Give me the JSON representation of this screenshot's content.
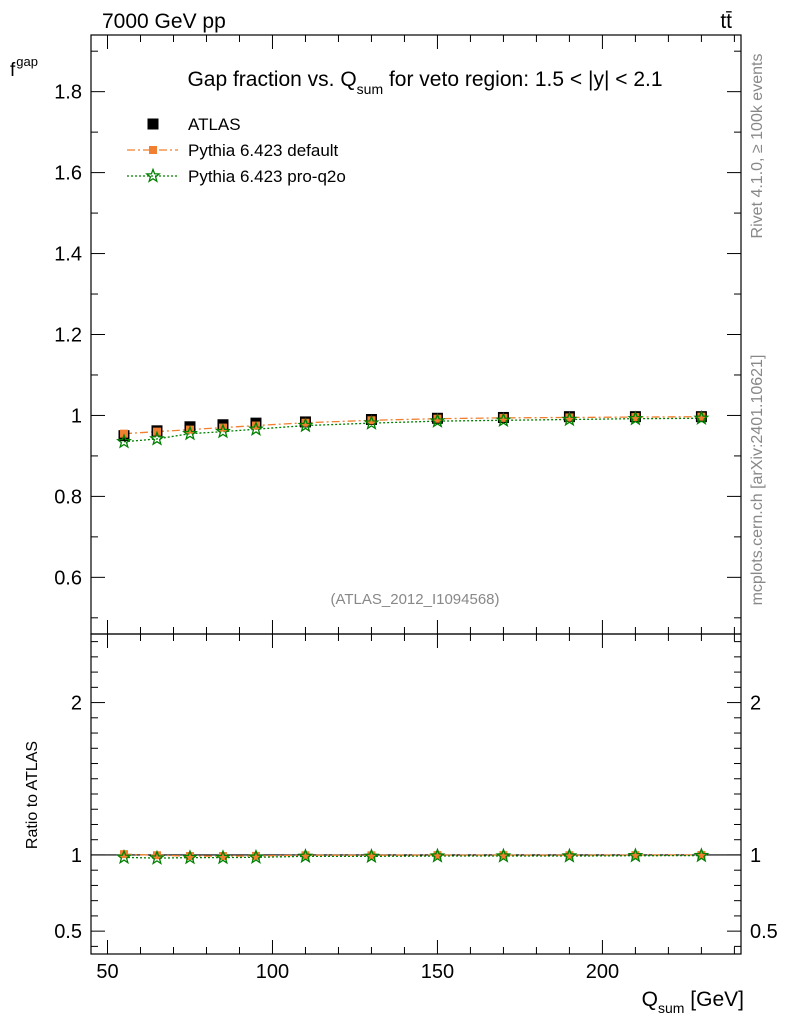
{
  "header": {
    "energy_label": "7000 GeV pp",
    "process_label": "tt̄"
  },
  "side_labels": {
    "rivet": "Rivet 4.1.0, ≥ 100k events",
    "mcplots": "mcplots.cern.ch [arXiv:2401.10621]"
  },
  "colors": {
    "atlas": "#000000",
    "default": "#f08030",
    "pro_q2o": "#008000"
  },
  "chart_data": {
    "type": "line",
    "title": {
      "prefix": "Gap fraction vs. Q",
      "subscript": "sum",
      "suffix": " for veto region: 1.5 < |y| < 2.1"
    },
    "analysis_id": "(ATLAS_2012_I1094568)",
    "xlabel": {
      "main": "Q",
      "subscript": "sum",
      "unit": " [GeV]"
    },
    "ylabel_top": {
      "main": "f",
      "subscript": "gap"
    },
    "ylabel_ratio": "Ratio to ATLAS",
    "xlim": [
      45,
      242
    ],
    "ylim_top": [
      0.46,
      1.94
    ],
    "ylim_ratio": [
      0.35,
      2.45
    ],
    "x_ticks": [
      50,
      100,
      150,
      200
    ],
    "x_tick_labels": [
      "50",
      "100",
      "150",
      "200"
    ],
    "y_ticks_top": [
      0.6,
      0.8,
      1.0,
      1.2,
      1.4,
      1.6,
      1.8
    ],
    "y_tick_labels_top": [
      "0.6",
      "0.8",
      "1",
      "1.2",
      "1.4",
      "1.6",
      "1.8"
    ],
    "y_ticks_ratio": [
      0.5,
      1,
      2
    ],
    "y_tick_labels_ratio": [
      "0.5",
      "1",
      "2"
    ],
    "x": [
      55,
      65,
      75,
      85,
      95,
      110,
      130,
      150,
      170,
      190,
      210,
      230
    ],
    "series": [
      {
        "name": "ATLAS",
        "marker": "square",
        "values": [
          0.95,
          0.962,
          0.972,
          0.977,
          0.981,
          0.984,
          0.99,
          0.993,
          0.995,
          0.997,
          0.997,
          0.997
        ]
      },
      {
        "name": "Pythia 6.423 default",
        "marker": "square-small",
        "values": [
          0.955,
          0.96,
          0.965,
          0.97,
          0.975,
          0.982,
          0.988,
          0.992,
          0.994,
          0.995,
          0.996,
          0.997
        ]
      },
      {
        "name": "Pythia 6.423 pro-q2o",
        "marker": "star",
        "values": [
          0.935,
          0.942,
          0.955,
          0.96,
          0.966,
          0.975,
          0.981,
          0.986,
          0.988,
          0.99,
          0.992,
          0.993
        ]
      }
    ],
    "legend_position": "top-left"
  }
}
